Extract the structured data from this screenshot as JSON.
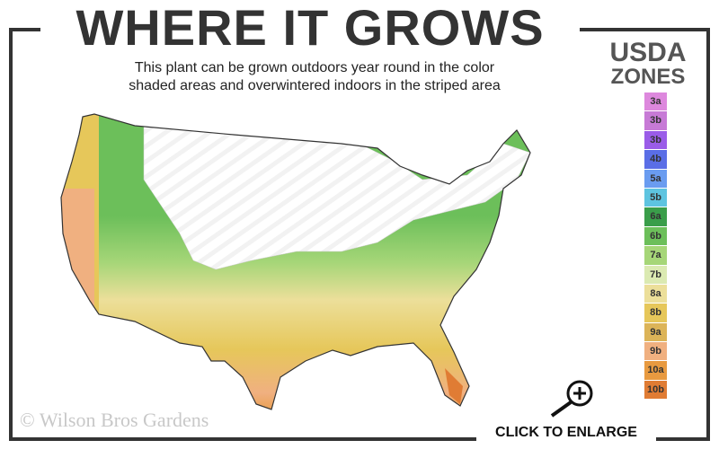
{
  "title": "WHERE IT GROWS",
  "subtitle_line1": "This plant can be grown outdoors year round in the color",
  "subtitle_line2": "shaded areas and overwintered indoors in the striped area",
  "legend": {
    "title_line1": "USDA",
    "title_line2": "ZONES",
    "zones": [
      {
        "label": "3a",
        "color": "#dd88dd"
      },
      {
        "label": "3b",
        "color": "#c77ad6"
      },
      {
        "label": "3b",
        "color": "#9a5ce8"
      },
      {
        "label": "4b",
        "color": "#5a6ee6"
      },
      {
        "label": "5a",
        "color": "#6a9cf0"
      },
      {
        "label": "5b",
        "color": "#5ec4e0"
      },
      {
        "label": "6a",
        "color": "#3a9e4a"
      },
      {
        "label": "6b",
        "color": "#6cbf5a"
      },
      {
        "label": "7a",
        "color": "#a6d678"
      },
      {
        "label": "7b",
        "color": "#dbeab2"
      },
      {
        "label": "8a",
        "color": "#ecdf9a"
      },
      {
        "label": "8b",
        "color": "#e6c75a"
      },
      {
        "label": "9a",
        "color": "#dcb458"
      },
      {
        "label": "9b",
        "color": "#f0b080"
      },
      {
        "label": "10a",
        "color": "#e89a40"
      },
      {
        "label": "10b",
        "color": "#e07c34"
      }
    ]
  },
  "copyright": "© Wilson Bros Gardens",
  "enlarge_label": "CLICK TO ENLARGE",
  "icons": {
    "enlarge": "magnifier-plus-icon"
  }
}
